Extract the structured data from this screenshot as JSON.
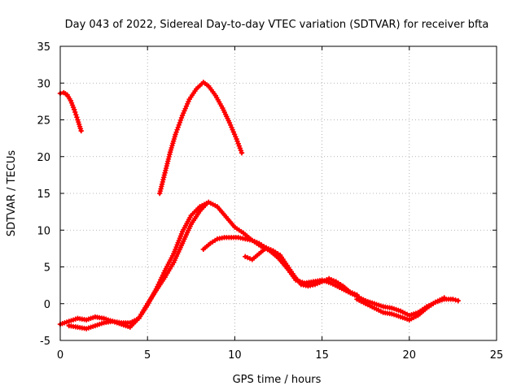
{
  "chart_data": {
    "type": "scatter",
    "title": "Day 043 of 2022, Sidereal Day-to-day VTEC variation (SDTVAR) for receiver bfta",
    "xlabel": "GPS time / hours",
    "ylabel": "SDTVAR / TECUs",
    "xlim": [
      0,
      25
    ],
    "ylim": [
      -5,
      35
    ],
    "xticks": [
      0,
      5,
      10,
      15,
      20,
      25
    ],
    "yticks": [
      -5,
      0,
      5,
      10,
      15,
      20,
      25,
      30,
      35
    ],
    "grid": true,
    "marker": "plus",
    "color": "#ff0000",
    "series": [
      {
        "name": "arc-1",
        "x": [
          0.0,
          0.2,
          0.4,
          0.6,
          0.8,
          1.0,
          1.2
        ],
        "y": [
          28.6,
          28.7,
          28.4,
          27.6,
          26.4,
          25.0,
          23.5
        ]
      },
      {
        "name": "arc-2",
        "x": [
          5.7,
          6.0,
          6.3,
          6.6,
          7.0,
          7.4,
          7.8,
          8.2,
          8.5,
          8.9,
          9.3,
          9.7,
          10.1,
          10.4
        ],
        "y": [
          15.0,
          17.8,
          20.6,
          23.0,
          25.6,
          27.8,
          29.2,
          30.1,
          29.6,
          28.3,
          26.6,
          24.6,
          22.4,
          20.5
        ]
      },
      {
        "name": "arc-3",
        "x": [
          0.0,
          0.5,
          1.0,
          1.5,
          2.0,
          2.5,
          3.0,
          3.5,
          4.0,
          4.5,
          5.0,
          5.5,
          6.0,
          6.5,
          7.0,
          7.5,
          8.0,
          8.5,
          9.0,
          9.5,
          10.0,
          10.5,
          11.0,
          11.5,
          12.0,
          12.5,
          13.0,
          13.5,
          14.0,
          14.5,
          15.0,
          15.5,
          16.0,
          16.5,
          17.0,
          17.5,
          18.0,
          18.5,
          19.0,
          19.5,
          20.0,
          20.5,
          21.0,
          21.5,
          22.0,
          22.5,
          22.8
        ],
        "y": [
          -2.8,
          -2.4,
          -2.0,
          -2.2,
          -1.8,
          -2.0,
          -2.4,
          -2.6,
          -2.6,
          -2.0,
          -0.2,
          2.0,
          4.5,
          6.8,
          9.8,
          12.0,
          13.2,
          13.8,
          13.2,
          11.8,
          10.4,
          9.6,
          8.6,
          7.8,
          7.2,
          6.2,
          4.8,
          3.2,
          2.8,
          3.0,
          3.2,
          2.8,
          2.2,
          1.6,
          1.0,
          0.4,
          0.0,
          -0.4,
          -0.6,
          -1.0,
          -1.6,
          -1.2,
          -0.4,
          0.2,
          0.6,
          0.6,
          0.4
        ]
      },
      {
        "name": "arc-4",
        "x": [
          0.5,
          1.0,
          1.5,
          2.0,
          2.5,
          3.0,
          3.5,
          4.0,
          4.5,
          5.0,
          5.5,
          6.0,
          6.5,
          7.0,
          7.5,
          8.0,
          8.4
        ],
        "y": [
          -3.0,
          -3.2,
          -3.4,
          -3.0,
          -2.6,
          -2.4,
          -2.8,
          -3.2,
          -2.0,
          0.0,
          1.8,
          3.6,
          5.6,
          8.2,
          10.8,
          12.6,
          13.6
        ]
      },
      {
        "name": "arc-5",
        "x": [
          8.2,
          8.6,
          9.0,
          9.4,
          9.8,
          10.2,
          10.6,
          11.0,
          11.4,
          11.8
        ],
        "y": [
          7.4,
          8.2,
          8.8,
          9.0,
          9.0,
          9.0,
          8.8,
          8.6,
          8.2,
          7.6
        ]
      },
      {
        "name": "arc-6",
        "x": [
          10.6,
          11.0,
          11.4,
          11.8,
          12.2,
          12.6,
          13.0,
          13.4,
          13.8,
          14.2,
          14.6,
          15.0,
          15.4,
          15.8,
          16.2,
          16.6,
          17.0
        ],
        "y": [
          6.4,
          6.0,
          6.8,
          7.6,
          7.2,
          6.6,
          5.2,
          3.8,
          2.6,
          2.4,
          2.6,
          3.0,
          3.4,
          3.0,
          2.4,
          1.6,
          1.2
        ]
      },
      {
        "name": "arc-7",
        "x": [
          17.0,
          17.5,
          18.0,
          18.5,
          19.0,
          19.5,
          20.0,
          20.5,
          21.0,
          21.5,
          22.0
        ],
        "y": [
          0.6,
          0.0,
          -0.6,
          -1.2,
          -1.4,
          -1.8,
          -2.2,
          -1.6,
          -0.6,
          0.2,
          0.8
        ]
      }
    ]
  }
}
